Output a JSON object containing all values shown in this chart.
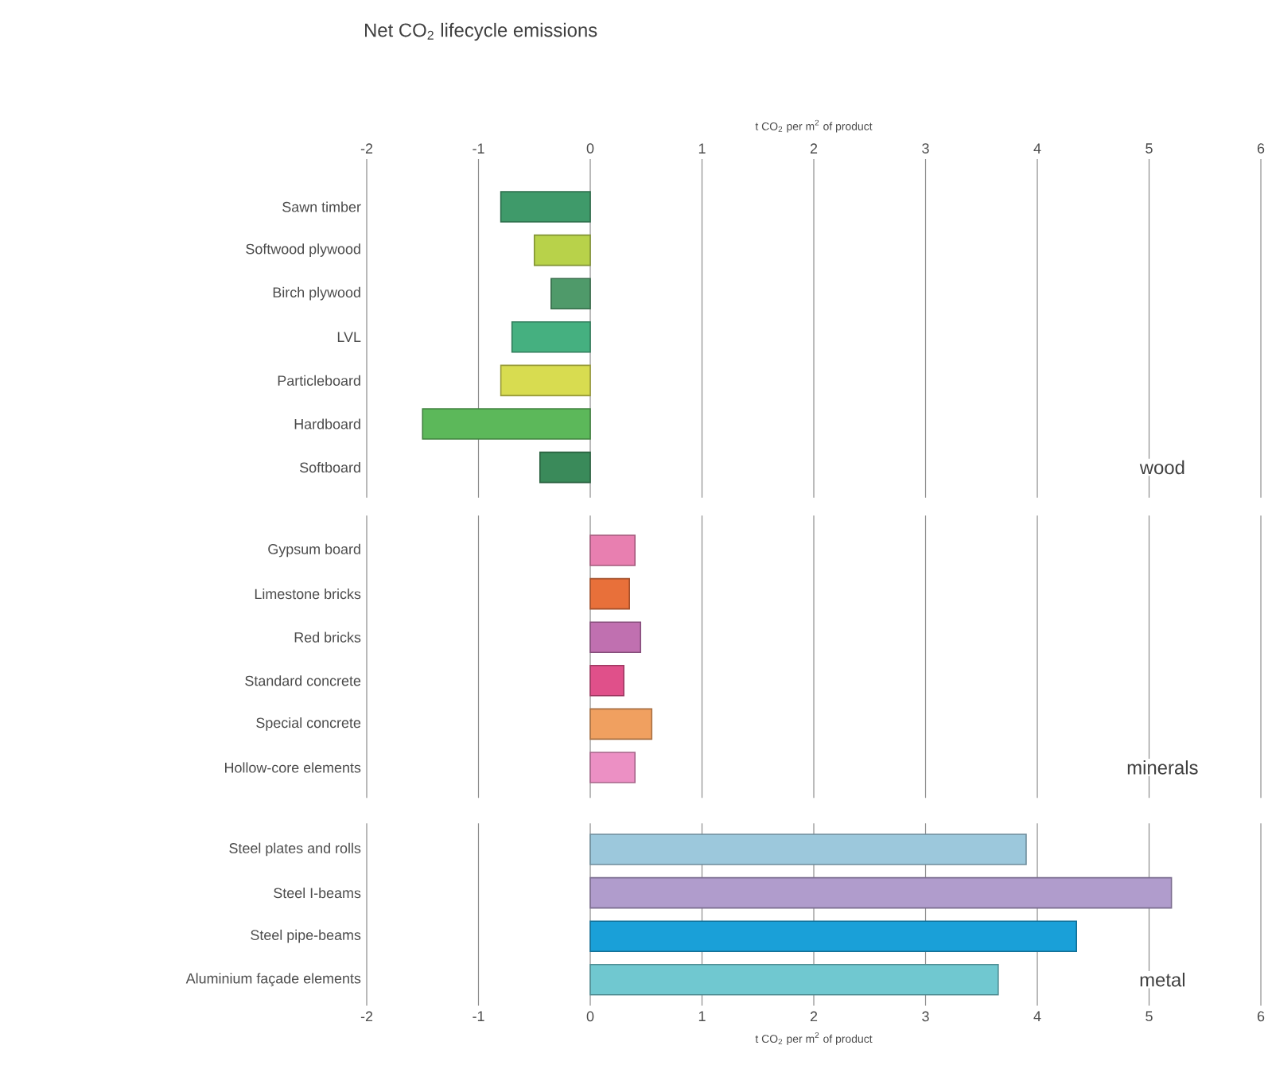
{
  "chart_data": [
    {
      "type": "bar",
      "orientation": "horizontal",
      "title": "Net CO$_{2}$ lifecycle emissions",
      "xlabel": "t CO$_{2}$ per m$^{2}$ of product",
      "categories": [
        "Sawn timber",
        "Softwood plywood",
        "Birch plywood",
        "LVL",
        "Particleboard",
        "Hardboard",
        "Softboard"
      ],
      "values": [
        -0.8,
        -0.5,
        -0.35,
        -0.7,
        -0.8,
        -1.5,
        -0.45
      ],
      "colors": [
        "#3f9a6a",
        "#b8d24a",
        "#4f9a6a",
        "#45b080",
        "#d8dc50",
        "#5cb85a",
        "#3a8a5a"
      ],
      "xlim": [
        -2,
        6
      ],
      "xticks": [
        -2,
        -1,
        0,
        1,
        2,
        3,
        4,
        5,
        6
      ],
      "grid": "x",
      "annotations": [
        "wood"
      ]
    },
    {
      "type": "bar",
      "orientation": "horizontal",
      "categories": [
        "Gypsum board",
        "Limestone bricks",
        "Red bricks",
        "Standard concrete",
        "Special concrete",
        "Hollow-core elements"
      ],
      "values": [
        0.4,
        0.35,
        0.45,
        0.3,
        0.55,
        0.4
      ],
      "colors": [
        "#e87fb0",
        "#e8703a",
        "#c070b0",
        "#e0508a",
        "#f0a060",
        "#ec90c4"
      ],
      "xlim": [
        -2,
        6
      ],
      "xticks": [
        -2,
        -1,
        0,
        1,
        2,
        3,
        4,
        5,
        6
      ],
      "grid": "x",
      "tick_labels": "y",
      "annotations": [
        "minerals"
      ]
    },
    {
      "type": "bar",
      "orientation": "horizontal",
      "xlabel": "t CO$_{2}$ per m$^{2}$ of product",
      "categories": [
        "Steel plates and rolls",
        "Steel I-beams",
        "Steel pipe-beams",
        "Aluminium façade elements"
      ],
      "values": [
        3.9,
        5.2,
        4.35,
        3.65
      ],
      "colors": [
        "#9cc8dc",
        "#b09ccc",
        "#1aa0d8",
        "#70c8d0"
      ],
      "xlim": [
        -2,
        6
      ],
      "xticks": [
        -2,
        -1,
        0,
        1,
        2,
        3,
        4,
        5,
        6
      ],
      "grid": "x",
      "annotations": [
        "metal"
      ]
    }
  ]
}
